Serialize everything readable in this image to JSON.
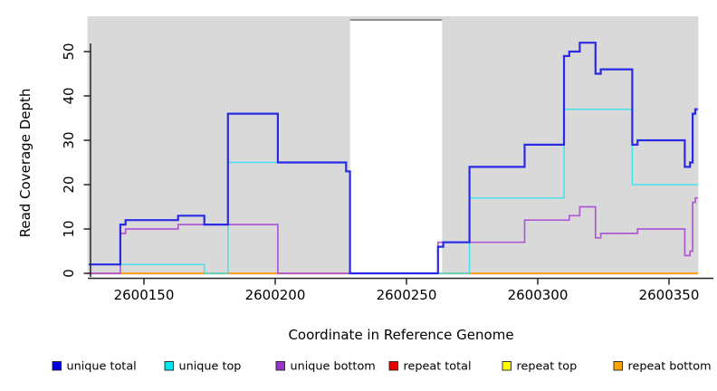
{
  "figure": {
    "title": "",
    "xlabel": "Coordinate in Reference Genome",
    "ylabel": "Read Coverage Depth"
  },
  "chart_data": {
    "type": "line",
    "subtype": "step-after",
    "title": "",
    "xlabel": "Coordinate in Reference Genome",
    "ylabel": "Read Coverage Depth",
    "xlim": [
      2600129,
      2600361
    ],
    "ylim": [
      0,
      52
    ],
    "x_ticks": [
      2600150,
      2600200,
      2600250,
      2600300,
      2600350
    ],
    "x_tick_labels": [
      "2600150",
      "2600200",
      "2600250",
      "2600300",
      "2600350"
    ],
    "y_ticks": [
      0,
      10,
      20,
      30,
      40,
      50
    ],
    "y_tick_labels": [
      "0",
      "10",
      "20",
      "30",
      "40",
      "50"
    ],
    "grid": false,
    "legend_position": "bottom",
    "plot_background": "#d9d9d9",
    "page_background": "#ffffff",
    "axis_color": "#262626",
    "masked_region": {
      "x_start": 2600228.5,
      "x_end": 2600262,
      "fill": "#ffffff",
      "top_border_color": "#8f8f8f"
    },
    "series": [
      {
        "name": "repeat total",
        "color": "#e00000",
        "line_width": 1.4,
        "legend_color": "#e60000",
        "points": [
          [
            2600129,
            0
          ],
          [
            2600361,
            0
          ]
        ]
      },
      {
        "name": "repeat top",
        "color": "#f2f200",
        "line_width": 1.4,
        "legend_color": "#ffff00",
        "points": [
          [
            2600129,
            0
          ],
          [
            2600361,
            0
          ]
        ]
      },
      {
        "name": "repeat bottom",
        "color": "#ff9d1c",
        "line_width": 1.9,
        "legend_color": "#ffa500",
        "points": [
          [
            2600129,
            0
          ],
          [
            2600361,
            0
          ]
        ]
      },
      {
        "name": "unique bottom",
        "color": "#ae58d6",
        "line_width": 1.7,
        "legend_color": "#9a32cd",
        "points": [
          [
            2600129,
            0
          ],
          [
            2600141,
            9
          ],
          [
            2600143,
            10
          ],
          [
            2600163,
            11
          ],
          [
            2600201,
            0
          ],
          [
            2600262,
            7
          ],
          [
            2600295,
            12
          ],
          [
            2600312,
            13
          ],
          [
            2600316,
            15
          ],
          [
            2600322,
            8
          ],
          [
            2600324,
            9
          ],
          [
            2600338,
            10
          ],
          [
            2600356,
            4
          ],
          [
            2600358,
            5
          ],
          [
            2600359,
            16
          ],
          [
            2600360,
            17
          ],
          [
            2600361,
            17
          ]
        ]
      },
      {
        "name": "unique top",
        "color": "#45e0ea",
        "line_width": 1.5,
        "legend_color": "#00e5ee",
        "points": [
          [
            2600129,
            2
          ],
          [
            2600173,
            0
          ],
          [
            2600182,
            25
          ],
          [
            2600227,
            23
          ],
          [
            2600228.5,
            0
          ],
          [
            2600274,
            17
          ],
          [
            2600310,
            37
          ],
          [
            2600336,
            20
          ],
          [
            2600361,
            20
          ]
        ]
      },
      {
        "name": "unique total",
        "color": "#2a2ae6",
        "line_width": 2.2,
        "legend_color": "#0000e5",
        "points": [
          [
            2600129,
            2
          ],
          [
            2600141,
            11
          ],
          [
            2600143,
            12
          ],
          [
            2600163,
            13
          ],
          [
            2600173,
            11
          ],
          [
            2600182,
            36
          ],
          [
            2600201,
            25
          ],
          [
            2600227,
            23
          ],
          [
            2600228.5,
            0
          ],
          [
            2600262,
            6
          ],
          [
            2600264,
            7
          ],
          [
            2600274,
            24
          ],
          [
            2600295,
            29
          ],
          [
            2600310,
            49
          ],
          [
            2600312,
            50
          ],
          [
            2600316,
            52
          ],
          [
            2600322,
            45
          ],
          [
            2600324,
            46
          ],
          [
            2600336,
            29
          ],
          [
            2600338,
            30
          ],
          [
            2600356,
            24
          ],
          [
            2600358,
            25
          ],
          [
            2600359,
            36
          ],
          [
            2600360,
            37
          ],
          [
            2600361,
            37
          ]
        ]
      }
    ]
  },
  "legend": {
    "items": [
      {
        "label": "unique total",
        "color": "#0000e5"
      },
      {
        "label": "unique top",
        "color": "#00e5ee"
      },
      {
        "label": "unique bottom",
        "color": "#9a32cd"
      },
      {
        "label": "repeat total",
        "color": "#e60000"
      },
      {
        "label": "repeat top",
        "color": "#ffff00"
      },
      {
        "label": "repeat bottom",
        "color": "#ffa500"
      }
    ]
  }
}
